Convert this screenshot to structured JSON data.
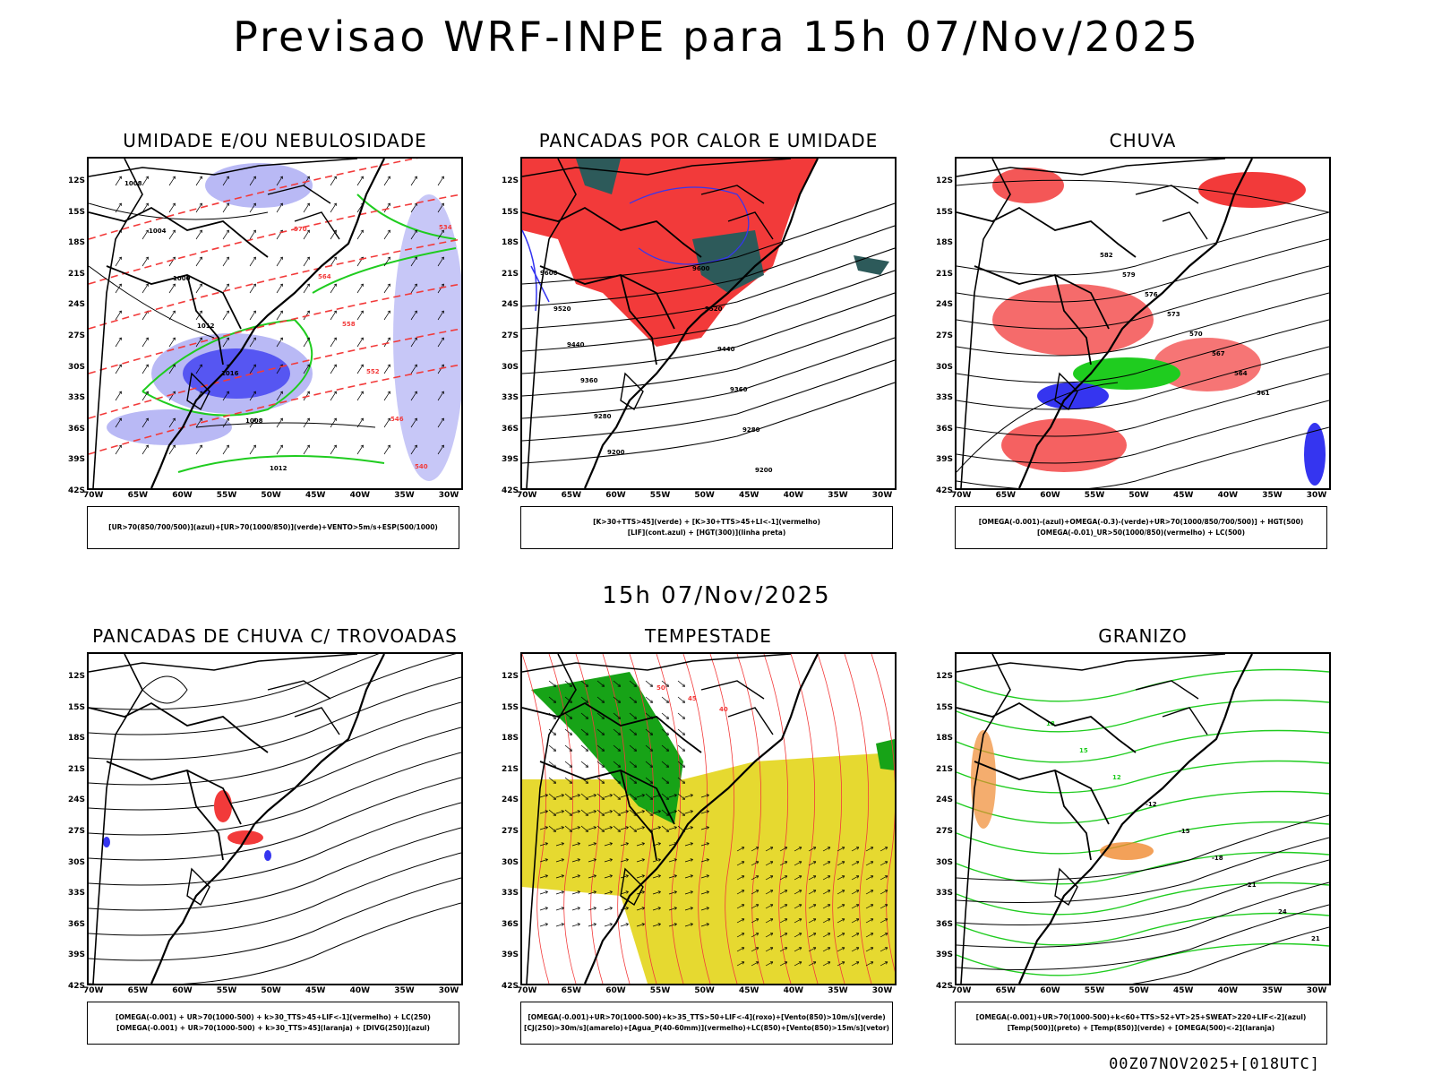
{
  "header": {
    "title": "Previsao WRF-INPE  para 15h 07/Nov/2025"
  },
  "mid_title": "15h 07/Nov/2025",
  "footer": "00Z07NOV2025+[018UTC]",
  "axes": {
    "lat": [
      "12S",
      "15S",
      "18S",
      "21S",
      "24S",
      "27S",
      "30S",
      "33S",
      "36S",
      "39S",
      "42S"
    ],
    "lon": [
      "70W",
      "65W",
      "60W",
      "55W",
      "50W",
      "45W",
      "40W",
      "35W",
      "30W"
    ]
  },
  "colors": {
    "red": "#f23a3a",
    "green": "#1fcc1f",
    "blue": "#3535f0",
    "lavender": "#b9b9f5",
    "darkteal": "#2d5a5a",
    "yellow": "#e6d930",
    "orange": "#f08a30",
    "darkgreen": "#17a317"
  },
  "panels": [
    {
      "title": "UMIDADE E/OU NEBULOSIDADE",
      "legend": [
        "[UR>70(850/700/500)](azul)+[UR>70(1000/850)](verde)+VENTO>5m/s+ESP(500/1000)"
      ],
      "contour_labels": [
        "1008",
        "1004",
        "1000",
        "1012",
        "1016",
        "1008",
        "1012",
        "570",
        "564",
        "558",
        "552",
        "546",
        "540",
        "534"
      ]
    },
    {
      "title": "PANCADAS POR CALOR E UMIDADE",
      "legend": [
        "[K>30+TTS>45](verde) + [K>30+TTS>45+LI<-1](vermelho)",
        "[LIF](cont.azul) + [HGT(300)](linha preta)"
      ],
      "contour_labels": [
        "9600",
        "9520",
        "9440",
        "9360",
        "9280",
        "9200",
        "9600",
        "9520",
        "9440",
        "9360",
        "9280",
        "9200"
      ]
    },
    {
      "title": "CHUVA",
      "legend": [
        "[OMEGA(-0.001)-(azul)+OMEGA(-0.3)-(verde)+UR>70(1000/850/700/500)] + HGT(500)",
        "[OMEGA(-0.01)_UR>50(1000/850)(vermelho) + LC(500)"
      ],
      "contour_labels": [
        "582",
        "579",
        "576",
        "573",
        "570",
        "567",
        "564",
        "561"
      ]
    },
    {
      "title": "PANCADAS DE CHUVA C/ TROVOADAS",
      "legend": [
        "[OMEGA(-0.001) + UR>70(1000-500) + k>30_TTS>45+LIF<-1](vermelho) + LC(250)",
        "[OMEGA(-0.001) + UR>70(1000-500) + k>30_TTS>45](laranja) + [DIVG(250)](azul)"
      ],
      "contour_labels": []
    },
    {
      "title": "TEMPESTADE",
      "legend": [
        "[OMEGA(-0.001)+UR>70(1000-500)+k>35_TTS>50+LIF<-4](roxo)+[Vento(850)>10m/s](verde)",
        "[CJ(250)>30m/s](amarelo)+[Agua_P(40-60mm)](vermelho)+LC(850)+[Vento(850)>15m/s](vetor)"
      ],
      "contour_labels": [
        "50",
        "45",
        "40"
      ]
    },
    {
      "title": "GRANIZO",
      "legend": [
        "[OMEGA(-0.001)+UR>70(1000-500)+k<60+TTS>52+VT>25+SWEAT>220+LIF<-2](azul)",
        "[Temp(500)](preto) + [Temp(850)](verde) + [OMEGA(500)<-2](laranja)"
      ],
      "contour_labels": [
        "18",
        "15",
        "12",
        "-12",
        "-15",
        "-18",
        "-21",
        "24",
        "21"
      ]
    }
  ]
}
